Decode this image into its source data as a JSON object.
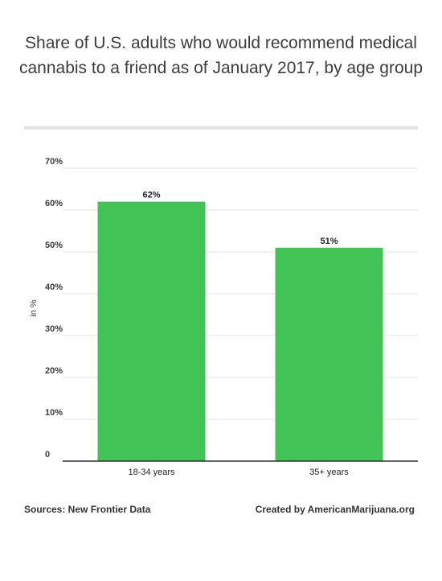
{
  "title": "Share of U.S. adults who would recommend medical cannabis to a friend as of January 2017, by age group",
  "footer": {
    "source": "Sources: New Frontier Data",
    "credit": "Created by AmericanMarijuana.org"
  },
  "colors": {
    "bar": "#41c356",
    "grid": "#e3e3e3",
    "axis": "#333333"
  },
  "chart_data": {
    "type": "bar",
    "categories": [
      "18-34 years",
      "35+ years"
    ],
    "values": [
      62,
      51
    ],
    "value_labels": [
      "62%",
      "51%"
    ],
    "ylabel": "in %",
    "xlabel": "",
    "ylim": [
      0,
      70
    ],
    "yticks": [
      0,
      10,
      20,
      30,
      40,
      50,
      60,
      70
    ],
    "ytick_labels": [
      "0",
      "10%",
      "20%",
      "30%",
      "40%",
      "50%",
      "60%",
      "70%"
    ],
    "grid": true,
    "legend": "none"
  }
}
